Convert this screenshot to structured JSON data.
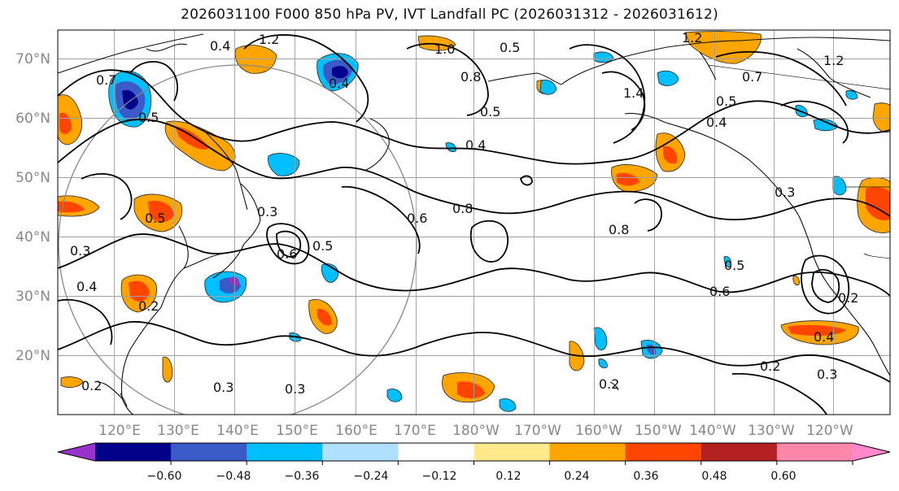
{
  "title": "2026031100 F000 850 hPa PV, IVT Landfall PC (2026031312 - 2026031612)",
  "lat_labels": [
    "70°N",
    "60°N",
    "50°N",
    "40°N",
    "30°N",
    "20°N"
  ],
  "lat_values": [
    70,
    60,
    50,
    40,
    30,
    20
  ],
  "lon_labels": [
    "120°E",
    "130°E",
    "140°E",
    "150°E",
    "160°E",
    "170°E",
    "180°W",
    "170°W",
    "160°W",
    "150°W",
    "140°W",
    "130°W",
    "120°W"
  ],
  "colorbar": {
    "ticks": [
      "−0.60",
      "−0.48",
      "−0.36",
      "−0.24",
      "−0.12",
      "0.12",
      "0.24",
      "0.36",
      "0.48",
      "0.60"
    ],
    "colors": [
      "#9932cc",
      "#00008b",
      "#3a5bc7",
      "#00bfff",
      "#b0e0ff",
      "#ffffff",
      "#ffe98a",
      "#ffa500",
      "#ff4500",
      "#b22222",
      "#ff88aa",
      "#ff88cc"
    ]
  },
  "contour_labels": [
    "0.4",
    "0.7",
    "0.4",
    "1.0",
    "0.5",
    "0.8",
    "0.5",
    "0.4",
    "1.2",
    "1.4",
    "1.2",
    "0.5",
    "0.7",
    "0.4",
    "0.3",
    "0.8",
    "0.6",
    "0.5",
    "0.3",
    "0.6",
    "0.5",
    "0.8",
    "0.6",
    "0.5",
    "0.3",
    "0.4",
    "0.2",
    "0.2",
    "0.3",
    "0.3",
    "0.2",
    "0.2",
    "0.3",
    "0.4",
    "0.2",
    "1.2",
    "0.5"
  ]
}
